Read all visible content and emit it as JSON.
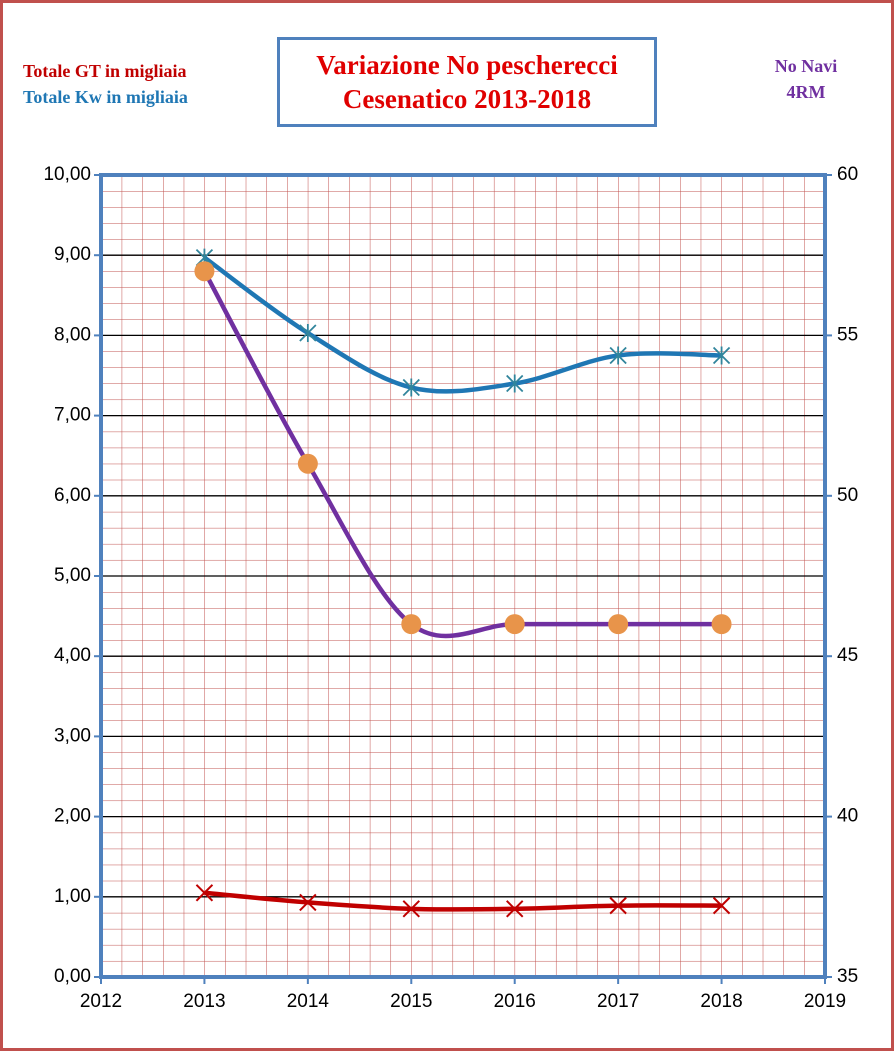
{
  "chart_data": {
    "type": "line",
    "title": "Variazione No pescherecci Cesenatico 2013-2018",
    "x": [
      2013,
      2014,
      2015,
      2016,
      2017,
      2018
    ],
    "series": [
      {
        "name": "Totale GT in migliaia",
        "color": "#c00000",
        "marker": "x",
        "marker_color": "#c00000",
        "values": [
          1.05,
          0.93,
          0.85,
          0.85,
          0.89,
          0.89
        ]
      },
      {
        "name": "Totale Kw in migliaia",
        "color": "#1f77b4",
        "marker": "asterisk",
        "marker_color": "#31859c",
        "values": [
          8.97,
          8.03,
          7.35,
          7.4,
          7.75,
          7.75
        ]
      },
      {
        "name": "No Navi 4RM",
        "color": "#7030a0",
        "marker": "circle",
        "marker_color": "#e8944a",
        "axis": "y2",
        "values": [
          57,
          51,
          46,
          46,
          46,
          46
        ]
      }
    ],
    "xlim": [
      2012,
      2019
    ],
    "xticks": [
      2012,
      2013,
      2014,
      2015,
      2016,
      2017,
      2018,
      2019
    ],
    "ylim": [
      0,
      10
    ],
    "yticks": [
      {
        "value": 0,
        "label": "0,00"
      },
      {
        "value": 1,
        "label": "1,00"
      },
      {
        "value": 2,
        "label": "2,00"
      },
      {
        "value": 3,
        "label": "3,00"
      },
      {
        "value": 4,
        "label": "4,00"
      },
      {
        "value": 5,
        "label": "5,00"
      },
      {
        "value": 6,
        "label": "6,00"
      },
      {
        "value": 7,
        "label": "7,00"
      },
      {
        "value": 8,
        "label": "8,00"
      },
      {
        "value": 9,
        "label": "9,00"
      },
      {
        "value": 10,
        "label": "10,00"
      }
    ],
    "y2lim": [
      35,
      60
    ],
    "y2ticks": [
      35,
      40,
      45,
      50,
      55,
      60
    ],
    "grid": true
  }
}
